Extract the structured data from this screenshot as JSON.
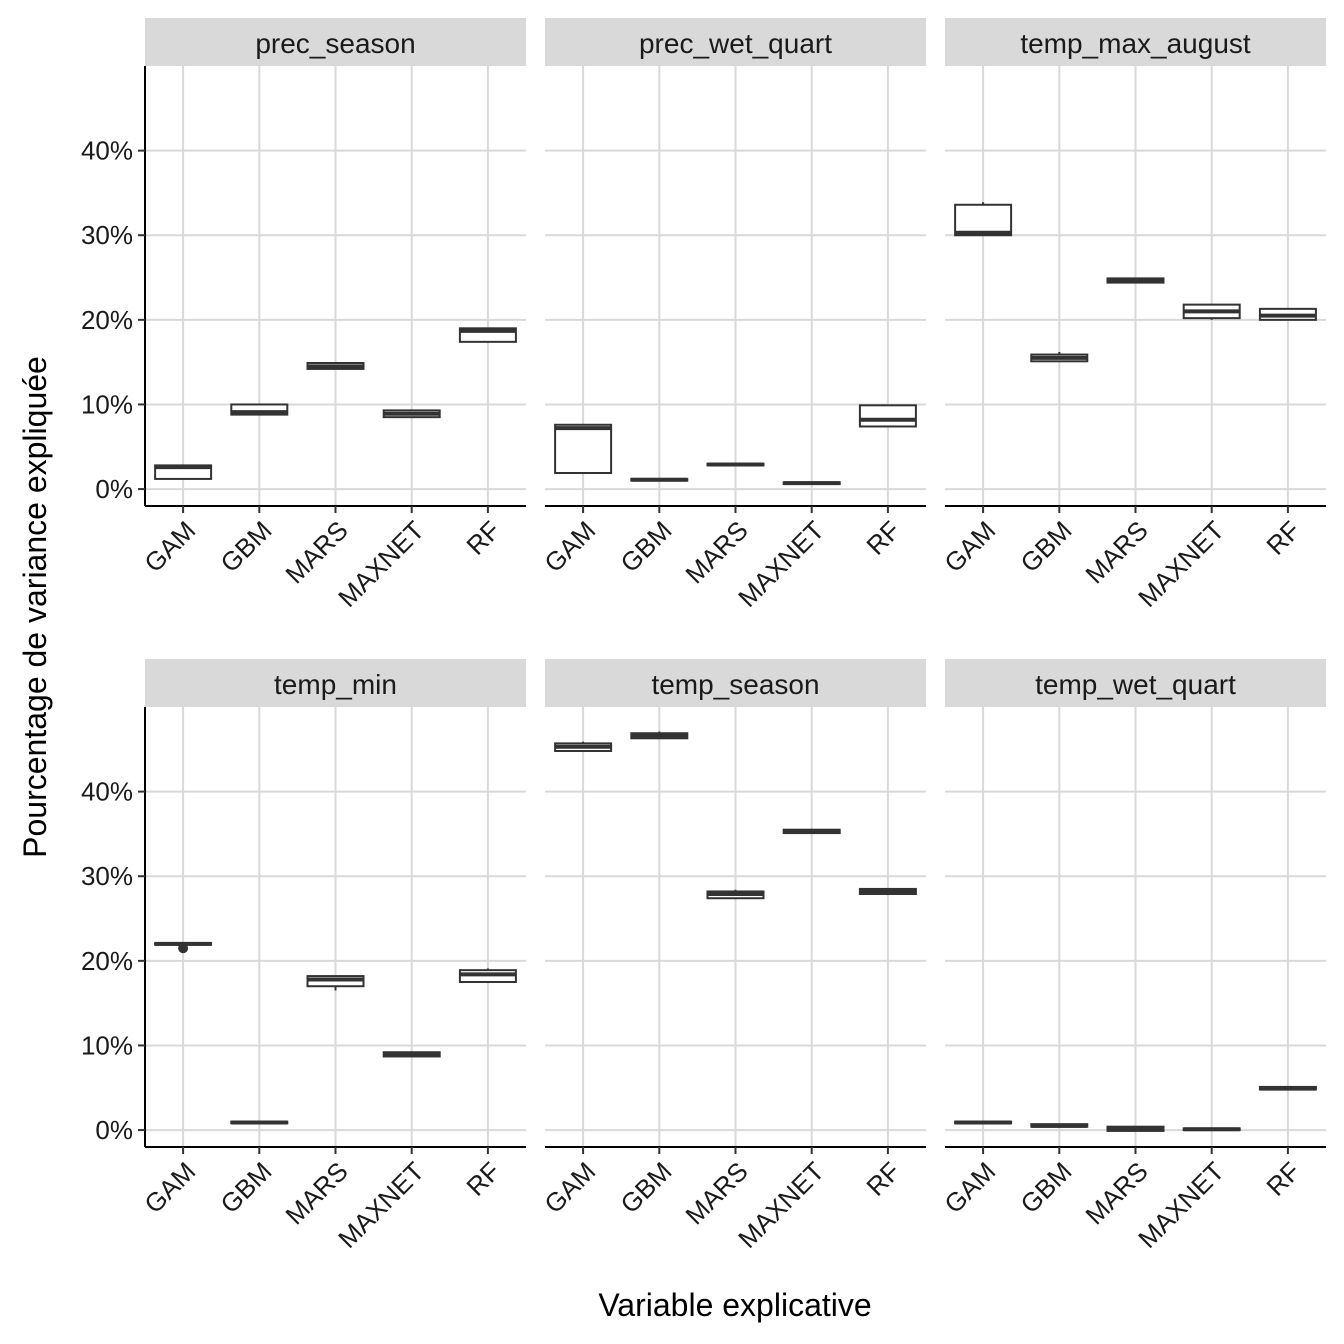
{
  "chart_data": {
    "type": "boxplot",
    "xlabel": "Variable explicative",
    "ylabel": "Pourcentage de variance expliquée",
    "ylim": [
      -2,
      50
    ],
    "yticks": [
      0,
      10,
      20,
      30,
      40
    ],
    "ytick_labels": [
      "0%",
      "10%",
      "20%",
      "30%",
      "40%"
    ],
    "categories": [
      "GAM",
      "GBM",
      "MARS",
      "MAXNET",
      "RF"
    ],
    "grid": true,
    "layout": "3 columns x 2 rows",
    "colors": {
      "strip_bg": "#d9d9d9",
      "grid": "#d9d9d9",
      "box": "#333333"
    },
    "panels": [
      {
        "title": "prec_season",
        "boxes": [
          {
            "category": "GAM",
            "min": 1.2,
            "q1": 1.2,
            "median": 2.6,
            "q3": 2.8,
            "max": 2.9
          },
          {
            "category": "GBM",
            "min": 8.8,
            "q1": 8.8,
            "median": 9.1,
            "q3": 10.0,
            "max": 10.0
          },
          {
            "category": "MARS",
            "min": 14.2,
            "q1": 14.2,
            "median": 14.5,
            "q3": 14.9,
            "max": 15.0
          },
          {
            "category": "MAXNET",
            "min": 8.5,
            "q1": 8.5,
            "median": 8.9,
            "q3": 9.3,
            "max": 9.4
          },
          {
            "category": "RF",
            "min": 17.4,
            "q1": 17.4,
            "median": 18.7,
            "q3": 19.0,
            "max": 19.0
          }
        ]
      },
      {
        "title": "prec_wet_quart",
        "boxes": [
          {
            "category": "GAM",
            "min": 1.9,
            "q1": 1.9,
            "median": 7.2,
            "q3": 7.6,
            "max": 7.6
          },
          {
            "category": "GBM",
            "min": 1.0,
            "q1": 1.0,
            "median": 1.1,
            "q3": 1.2,
            "max": 1.2
          },
          {
            "category": "MARS",
            "min": 2.8,
            "q1": 2.8,
            "median": 2.9,
            "q3": 3.0,
            "max": 3.0
          },
          {
            "category": "MAXNET",
            "min": 0.6,
            "q1": 0.6,
            "median": 0.7,
            "q3": 0.8,
            "max": 0.8
          },
          {
            "category": "RF",
            "min": 7.4,
            "q1": 7.4,
            "median": 8.2,
            "q3": 9.9,
            "max": 9.9
          }
        ]
      },
      {
        "title": "temp_max_august",
        "boxes": [
          {
            "category": "GAM",
            "min": 30.0,
            "q1": 30.0,
            "median": 30.3,
            "q3": 33.6,
            "max": 33.9
          },
          {
            "category": "GBM",
            "min": 15.1,
            "q1": 15.1,
            "median": 15.5,
            "q3": 15.9,
            "max": 16.2
          },
          {
            "category": "MARS",
            "min": 24.4,
            "q1": 24.4,
            "median": 24.7,
            "q3": 24.9,
            "max": 25.0
          },
          {
            "category": "MAXNET",
            "min": 20.0,
            "q1": 20.2,
            "median": 21.0,
            "q3": 21.8,
            "max": 21.8
          },
          {
            "category": "RF",
            "min": 20.0,
            "q1": 20.0,
            "median": 20.5,
            "q3": 21.3,
            "max": 21.3
          }
        ]
      },
      {
        "title": "temp_min",
        "boxes": [
          {
            "category": "GAM",
            "min": 21.9,
            "q1": 21.9,
            "median": 22.0,
            "q3": 22.1,
            "max": 22.1,
            "outliers": [
              21.5
            ]
          },
          {
            "category": "GBM",
            "min": 0.8,
            "q1": 0.8,
            "median": 0.9,
            "q3": 1.0,
            "max": 1.0
          },
          {
            "category": "MARS",
            "min": 16.5,
            "q1": 17.0,
            "median": 17.8,
            "q3": 18.2,
            "max": 18.2
          },
          {
            "category": "MAXNET",
            "min": 8.7,
            "q1": 8.7,
            "median": 9.0,
            "q3": 9.2,
            "max": 9.3
          },
          {
            "category": "RF",
            "min": 17.5,
            "q1": 17.5,
            "median": 18.4,
            "q3": 18.9,
            "max": 19.1
          }
        ]
      },
      {
        "title": "temp_season",
        "boxes": [
          {
            "category": "GAM",
            "min": 44.8,
            "q1": 44.8,
            "median": 45.3,
            "q3": 45.7,
            "max": 45.9
          },
          {
            "category": "GBM",
            "min": 46.3,
            "q1": 46.3,
            "median": 46.6,
            "q3": 46.9,
            "max": 47.1
          },
          {
            "category": "MARS",
            "min": 27.3,
            "q1": 27.4,
            "median": 27.9,
            "q3": 28.2,
            "max": 28.4
          },
          {
            "category": "MAXNET",
            "min": 35.1,
            "q1": 35.1,
            "median": 35.3,
            "q3": 35.5,
            "max": 35.6
          },
          {
            "category": "RF",
            "min": 27.9,
            "q1": 27.9,
            "median": 28.2,
            "q3": 28.5,
            "max": 28.5
          }
        ]
      },
      {
        "title": "temp_wet_quart",
        "boxes": [
          {
            "category": "GAM",
            "min": 0.8,
            "q1": 0.8,
            "median": 0.9,
            "q3": 1.0,
            "max": 1.0
          },
          {
            "category": "GBM",
            "min": 0.4,
            "q1": 0.4,
            "median": 0.5,
            "q3": 0.7,
            "max": 0.7
          },
          {
            "category": "MARS",
            "min": -0.1,
            "q1": -0.1,
            "median": 0.2,
            "q3": 0.4,
            "max": 0.4
          },
          {
            "category": "MAXNET",
            "min": 0.0,
            "q1": 0.0,
            "median": 0.1,
            "q3": 0.2,
            "max": 0.2
          },
          {
            "category": "RF",
            "min": 4.8,
            "q1": 4.8,
            "median": 4.9,
            "q3": 5.1,
            "max": 5.1
          }
        ]
      }
    ]
  }
}
